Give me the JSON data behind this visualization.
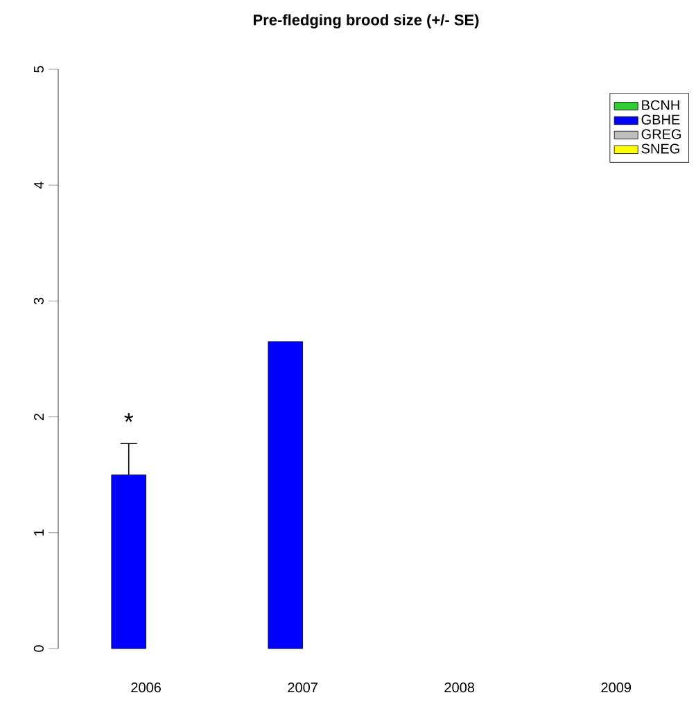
{
  "chart_data": {
    "type": "bar",
    "title": "Pre-fledging brood size (+/- SE)",
    "categories": [
      "2006",
      "2007",
      "2008",
      "2009"
    ],
    "series": [
      {
        "name": "BCNH",
        "color": "#33cc33",
        "values": [
          null,
          null,
          null,
          null
        ]
      },
      {
        "name": "GBHE",
        "color": "#0000ff",
        "values": [
          1.5,
          2.65,
          null,
          null
        ],
        "errors": [
          [
            1.5,
            1.77
          ],
          null,
          null,
          null
        ]
      },
      {
        "name": "GREG",
        "color": "#bebebe",
        "values": [
          null,
          null,
          null,
          null
        ]
      },
      {
        "name": "SNEG",
        "color": "#ffff00",
        "values": [
          null,
          null,
          null,
          null
        ]
      }
    ],
    "ylim": [
      0,
      5
    ],
    "yticks": [
      0,
      1,
      2,
      3,
      4,
      5
    ],
    "legend": "top right",
    "annotations": [
      "*"
    ]
  }
}
